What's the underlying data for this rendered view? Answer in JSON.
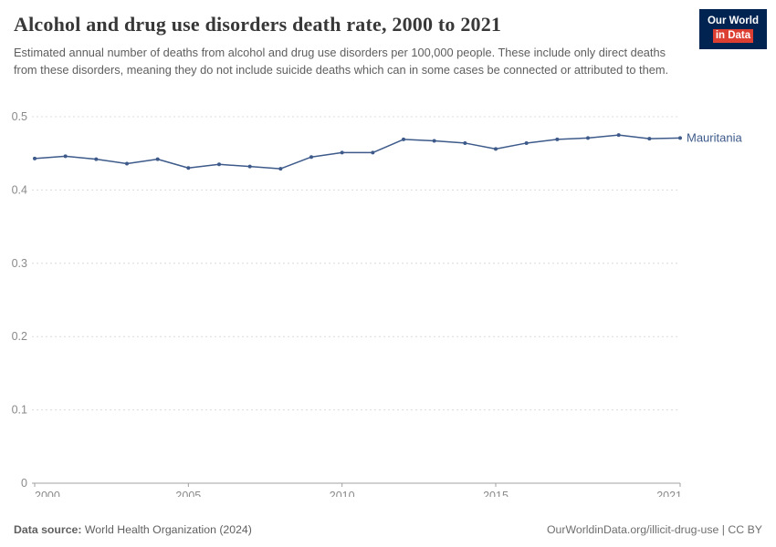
{
  "header": {
    "title": "Alcohol and drug use disorders death rate, 2000 to 2021",
    "subtitle": "Estimated annual number of deaths from alcohol and drug use disorders per 100,000 people. These include only direct deaths from these disorders, meaning they do not include suicide deaths which can in some cases be connected or attributed to them.",
    "logo": {
      "line1": "Our World",
      "line2": "in Data"
    }
  },
  "chart_data": {
    "type": "line",
    "title": "Alcohol and drug use disorders death rate, 2000 to 2021",
    "xlabel": "",
    "ylabel": "",
    "ylim": [
      0,
      0.5
    ],
    "y_ticks": [
      0,
      0.1,
      0.2,
      0.3,
      0.4,
      0.5
    ],
    "x_ticks": [
      2000,
      2005,
      2010,
      2015,
      2021
    ],
    "grid": "dashed-horizontal",
    "legend_position": "end-of-line-label",
    "x": [
      2000,
      2001,
      2002,
      2003,
      2004,
      2005,
      2006,
      2007,
      2008,
      2009,
      2010,
      2011,
      2012,
      2013,
      2014,
      2015,
      2016,
      2017,
      2018,
      2019,
      2020,
      2021
    ],
    "series": [
      {
        "name": "Mauritania",
        "color": "#3d5a8a",
        "values": [
          0.443,
          0.446,
          0.442,
          0.436,
          0.442,
          0.43,
          0.435,
          0.432,
          0.429,
          0.445,
          0.451,
          0.451,
          0.469,
          0.467,
          0.464,
          0.456,
          0.464,
          0.469,
          0.471,
          0.475,
          0.47,
          0.471
        ]
      }
    ]
  },
  "footer": {
    "source_label": "Data source:",
    "source_text": " World Health Organization (2024)",
    "right_text": "OurWorldinData.org/illicit-drug-use | CC BY"
  },
  "colors": {
    "grid": "#dcdcdc",
    "axis": "#a0a0a0",
    "tick_label": "#8a8a8a"
  }
}
